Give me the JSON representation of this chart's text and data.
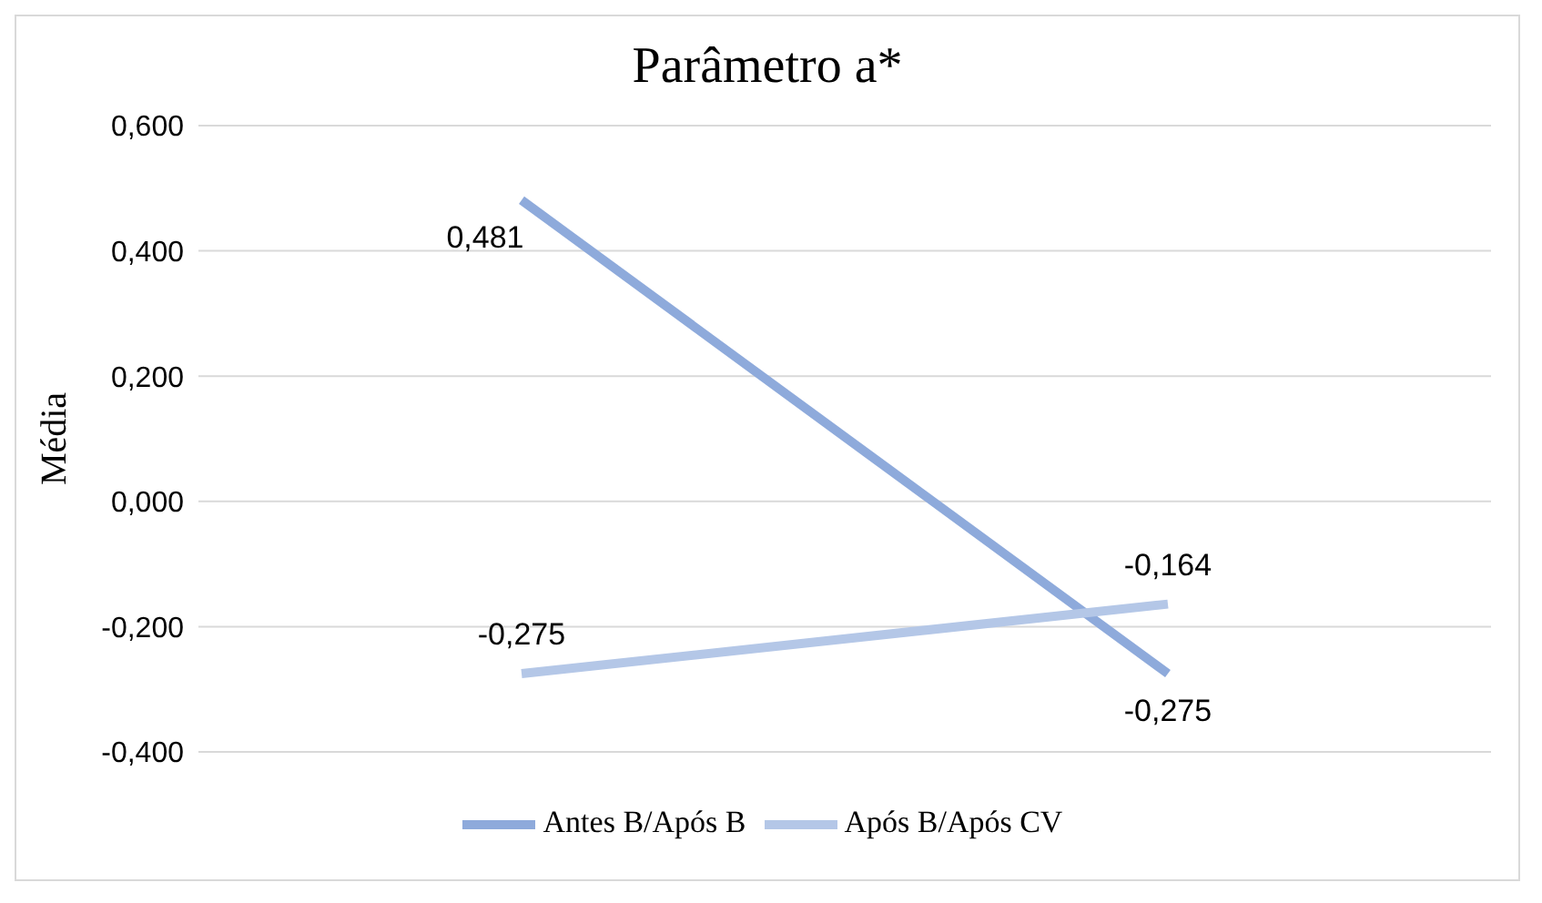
{
  "chart_data": {
    "type": "line",
    "title": "Parâmetro a*",
    "ylabel": "Média",
    "categories": [
      null,
      null
    ],
    "series": [
      {
        "name": "Antes B/Após B",
        "color": "#8eaadb",
        "values": [
          0.481,
          -0.275
        ],
        "value_labels": [
          "0,481",
          "-0,275"
        ]
      },
      {
        "name": "Após B/Após CV",
        "color": "#b4c7e7",
        "values": [
          -0.275,
          -0.164
        ],
        "value_labels": [
          "-0,275",
          "-0,164"
        ]
      }
    ],
    "ylim": [
      -0.4,
      0.6
    ],
    "yticks": [
      {
        "value": -0.4,
        "label": "-0,400"
      },
      {
        "value": -0.2,
        "label": "-0,200"
      },
      {
        "value": 0,
        "label": "0,000"
      },
      {
        "value": 0.2,
        "label": "0,200"
      },
      {
        "value": 0.4,
        "label": "0,400"
      },
      {
        "value": 0.6,
        "label": "0,600"
      }
    ],
    "grid": "y",
    "legend": "bottom",
    "marker": "none",
    "line_style": "solid"
  }
}
